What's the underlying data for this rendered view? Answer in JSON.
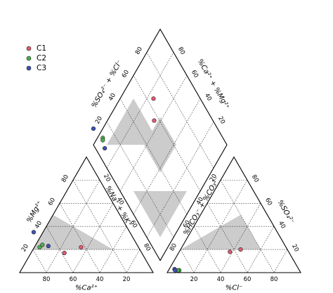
{
  "chart_data": {
    "type": "scatter",
    "subtype": "piper-diagram",
    "legend": {
      "placement": "top-left",
      "entries": [
        {
          "name": "C1",
          "color": "#e05a6e"
        },
        {
          "name": "C2",
          "color": "#4caf50"
        },
        {
          "name": "C3",
          "color": "#3f51b5"
        }
      ]
    },
    "cation_triangle": {
      "labels": {
        "ca": "%Ca²⁺",
        "mg": "%Mg²⁺",
        "na_k": "%Na⁺ + %K⁺"
      },
      "ticks": [
        "20",
        "40",
        "60",
        "80"
      ]
    },
    "anion_triangle": {
      "labels": {
        "cl": "%Cl⁻",
        "so4": "%SO₄²⁻",
        "hco3_co3": "%HCO₃⁻ + %CO₃²⁻"
      },
      "ticks": [
        "20",
        "40",
        "60",
        "80"
      ]
    },
    "diamond": {
      "labels": {
        "so4_cl": "%SO₄²⁻ + %Cl⁻",
        "ca_mg": "%Ca²⁺ + %Mg²⁺"
      },
      "ticks": [
        "20",
        "40",
        "60",
        "80"
      ]
    },
    "grid": true,
    "samples": [
      {
        "series": "C1",
        "ca": 43,
        "mg": 22,
        "cl": 38,
        "so4": 18
      },
      {
        "series": "C1",
        "ca": 58,
        "mg": 17,
        "cl": 45,
        "so4": 20
      },
      {
        "series": "C2",
        "ca": 74,
        "mg": 22,
        "cl": 8,
        "so4": 2
      },
      {
        "series": "C2",
        "ca": 71,
        "mg": 24,
        "cl": 7,
        "so4": 2
      },
      {
        "series": "C3",
        "ca": 72,
        "mg": 35,
        "cl": 4,
        "so4": 3
      },
      {
        "series": "C3",
        "ca": 67,
        "mg": 23,
        "cl": 5,
        "so4": 2
      }
    ]
  }
}
